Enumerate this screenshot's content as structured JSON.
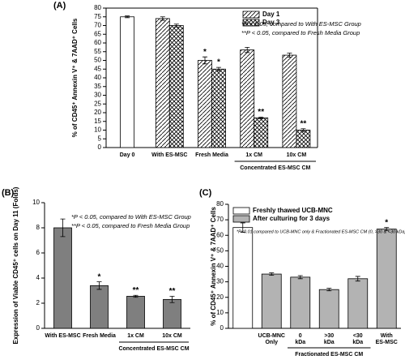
{
  "chart_data": [
    {
      "type": "bar",
      "panel_label": "(A)",
      "ylabel": "% of CD45⁺ Annexin V⁺ & 7AAD⁺ Cells",
      "categories": [
        "Day 0",
        "With ES-MSC",
        "Fresh Media",
        "1x CM",
        "10x CM"
      ],
      "values": [
        75,
        null,
        null,
        null,
        null
      ],
      "errors": [
        0.5,
        null,
        null,
        null,
        null
      ],
      "color": "#ffffff",
      "series": [
        {
          "name": "Day 1",
          "color": "#000000",
          "pattern": "diagonal",
          "values": [
            null,
            74,
            50,
            56,
            53
          ],
          "errors": [
            null,
            1,
            2,
            1.5,
            1.2
          ],
          "annotations": [
            null,
            null,
            "*",
            null,
            null
          ]
        },
        {
          "name": "Day 3",
          "color": "#000000",
          "pattern": "crosshatch",
          "values": [
            null,
            70,
            45,
            17,
            10
          ],
          "errors": [
            null,
            0.8,
            1,
            0.5,
            0.8
          ],
          "annotations": [
            null,
            null,
            "*",
            "**",
            "**"
          ]
        }
      ],
      "ylim": [
        0,
        80
      ],
      "yticks": [
        0,
        5,
        10,
        15,
        20,
        25,
        30,
        35,
        40,
        45,
        50,
        55,
        60,
        65,
        70,
        75,
        80
      ],
      "group": {
        "label": "Concentrated ES-MSC CM",
        "categories": [
          3,
          4
        ]
      },
      "notes": [
        "*P < 0.05, compared to With ES-MSC Group",
        "**P < 0.05, compared to Fresh Media Group"
      ],
      "legend": "upper right"
    },
    {
      "type": "bar",
      "panel_label": "(B)",
      "ylabel": "Expression of Viable CD45⁺ cells on Day 11 (Folds)",
      "categories": [
        "With ES-MSC",
        "Fresh Media",
        "1x CM",
        "10x CM"
      ],
      "series": [
        {
          "color": "#7f7f7f",
          "values": [
            8.0,
            3.4,
            2.55,
            2.3
          ],
          "errors": [
            0.7,
            0.3,
            0.08,
            0.25
          ],
          "annotations": [
            null,
            "*",
            "**",
            "**"
          ]
        }
      ],
      "ylim": [
        0,
        10
      ],
      "yticks": [
        0,
        2,
        4,
        6,
        8,
        10
      ],
      "group": {
        "label": "Concentrated ES-MSC CM",
        "categories": [
          2,
          3
        ]
      },
      "notes": [
        "*P < 0.05, compared to With ES-MSC Group",
        "**P < 0.05, compared to Fresh Media Group"
      ]
    },
    {
      "type": "bar",
      "panel_label": "(C)",
      "ylabel": "% of CD45⁺ Annexin V⁺ & 7AAD⁺ Cells",
      "categories": [
        null,
        "UCB-MNC Only",
        "0 kDa",
        ">30 kDa",
        "<30 kDa",
        "With ES-MSC"
      ],
      "series": [
        {
          "name": "Freshly thawed UCB-MNC",
          "color": "#ffffff",
          "values": [
            65,
            null,
            null,
            null,
            null,
            null
          ],
          "errors": [
            3,
            null,
            null,
            null,
            null,
            null
          ],
          "annotations": [
            null,
            null,
            null,
            null,
            null,
            null
          ]
        },
        {
          "name": "After culturing for 3 days",
          "color": "#b3b3b3",
          "values": [
            null,
            35,
            33,
            25,
            32,
            64
          ],
          "errors": [
            null,
            0.8,
            1,
            0.8,
            1.5,
            1
          ],
          "annotations": [
            null,
            null,
            null,
            null,
            null,
            "*"
          ]
        }
      ],
      "ylim": [
        0,
        80
      ],
      "yticks": [
        0,
        10,
        20,
        30,
        40,
        50,
        60,
        70,
        80
      ],
      "group": {
        "label": "Fractionated ES-MSC CM",
        "categories": [
          2,
          4
        ]
      },
      "notes": [
        "*P<0.01 compared to UCB-MNC only & Fractionated ES-MSC CM (0, >30 & <30 kDa)"
      ],
      "legend": "upper left"
    }
  ]
}
